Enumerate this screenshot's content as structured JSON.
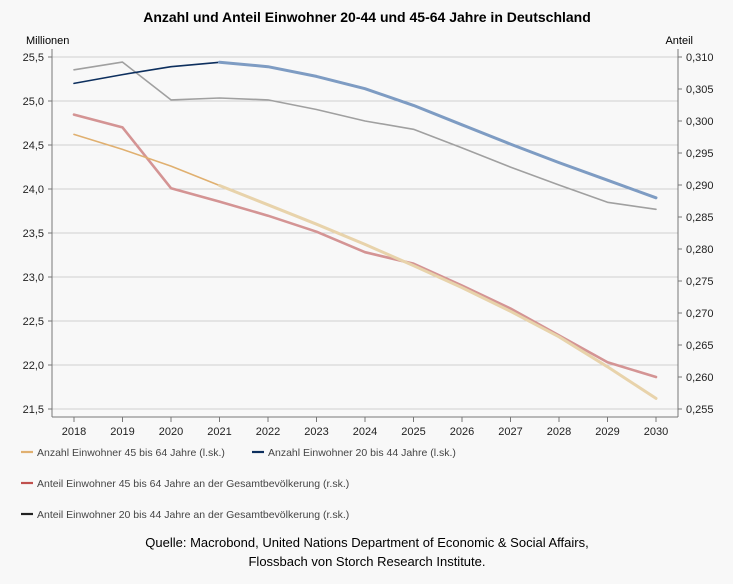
{
  "chart_data": {
    "type": "line",
    "title": "Anzahl und Anteil Einwohner 20-44 und 45-64 Jahre in Deutschland",
    "y_left_label": "Millionen",
    "y_right_label": "Anteil",
    "x": [
      2018,
      2019,
      2020,
      2021,
      2022,
      2023,
      2024,
      2025,
      2026,
      2027,
      2028,
      2029,
      2030
    ],
    "x_tick_labels": [
      "2018",
      "2019",
      "2020",
      "2021",
      "2022",
      "2023",
      "2024",
      "2025",
      "2026",
      "2027",
      "2028",
      "2029",
      "2030"
    ],
    "ylim_left": [
      21.5,
      25.5
    ],
    "ylim_right": [
      0.255,
      0.31
    ],
    "y_left_ticks": [
      "25,5",
      "25,0",
      "24,5",
      "24,0",
      "23,5",
      "23,0",
      "22,5",
      "22,0",
      "21,5"
    ],
    "y_right_ticks": [
      "0,310",
      "0,305",
      "0,300",
      "0,295",
      "0,290",
      "0,285",
      "0,280",
      "0,275",
      "0,270",
      "0,265",
      "0,260",
      "0,255"
    ],
    "series": [
      {
        "name": "Anzahl Einwohner 45 bis 64 Jahre (l.sk.)",
        "axis": "left",
        "color": "#e0b070",
        "color2": "#e8d3ab",
        "values": [
          24.62,
          24.45,
          24.26,
          24.04,
          23.82,
          23.6,
          23.37,
          23.13,
          22.88,
          22.61,
          22.32,
          21.98,
          21.62
        ]
      },
      {
        "name": "Anzahl Einwohner 20 bis 44 Jahre (l.sk.)",
        "axis": "left",
        "color": "#0d2f5e",
        "color2": "#7e9cc3",
        "values": [
          25.2,
          25.3,
          25.39,
          25.44,
          25.39,
          25.28,
          25.14,
          24.95,
          24.73,
          24.51,
          24.3,
          24.1,
          23.9
        ]
      },
      {
        "name": "Anteil Einwohner 45 bis 64 Jahre an der Gesamtbevölkerung (r.sk.)",
        "axis": "right",
        "color": "#d49494",
        "values": [
          0.301,
          0.299,
          0.2895,
          0.2874,
          0.2852,
          0.2827,
          0.2795,
          0.2777,
          0.2743,
          0.2707,
          0.2665,
          0.2623,
          0.26
        ]
      },
      {
        "name": "Anteil Einwohner 20 bis 44 Jahre an der Gesamtbevölkerung (r.sk.)",
        "axis": "right",
        "color": "#a0a0a0",
        "values": [
          0.308,
          0.3092,
          0.3033,
          0.3036,
          0.3033,
          0.3018,
          0.3,
          0.2987,
          0.2958,
          0.2928,
          0.29,
          0.2873,
          0.2862
        ]
      }
    ],
    "legend": [
      {
        "label": "Anzahl Einwohner 45 bis 64 Jahre (l.sk.)",
        "color": "#e0b070"
      },
      {
        "label": "Anzahl Einwohner 20 bis 44 Jahre (l.sk.)",
        "color": "#0d2f5e"
      },
      {
        "label": "Anteil Einwohner 45 bis 64 Jahre an der Gesamtbevölkerung (r.sk.)",
        "color": "#c0504d"
      },
      {
        "label": "Anteil Einwohner 20 bis 44 Jahre an der Gesamtbevölkerung (r.sk.)",
        "color": "#222222"
      }
    ],
    "source_line1": "Quelle: Macrobond, United Nations Department of Economic & Social Affairs,",
    "source_line2": "Flossbach von Storch Research Institute."
  }
}
